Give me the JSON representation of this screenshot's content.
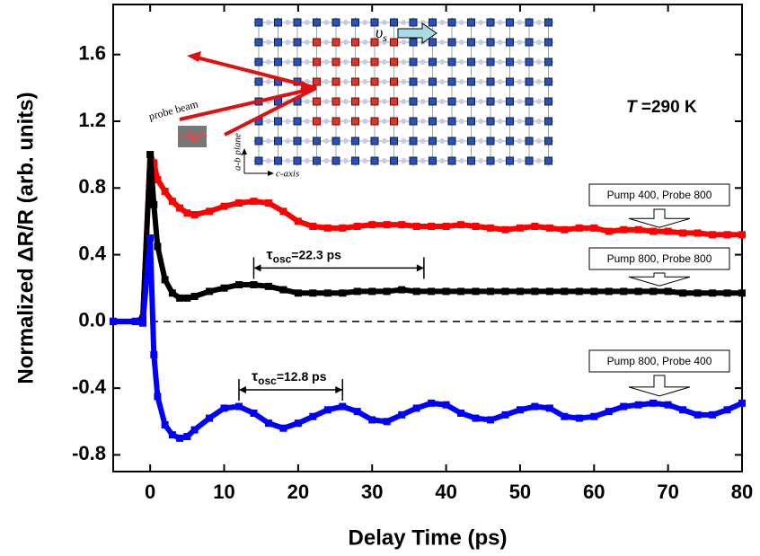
{
  "chart_data": {
    "type": "line",
    "x_label": "Delay Time (ps)",
    "y_label": "Normalized ΔR/R (arb. units)",
    "xlim": [
      -5,
      80
    ],
    "xticks": [
      0,
      10,
      20,
      30,
      40,
      50,
      60,
      70,
      80
    ],
    "ylim": [
      -0.9,
      1.9
    ],
    "yticks": [
      -0.8,
      -0.4,
      {
        "value": 0,
        "label": "0.0"
      },
      0.4,
      0.8,
      1.2,
      1.6
    ],
    "x": [
      -5,
      -2,
      -1,
      0,
      0.5,
      1,
      2,
      3,
      4,
      5,
      6,
      8,
      10,
      12,
      14,
      16,
      18,
      20,
      22,
      24,
      26,
      28,
      30,
      32,
      34,
      36,
      38,
      40,
      42,
      44,
      46,
      48,
      50,
      52,
      54,
      56,
      58,
      60,
      62,
      64,
      66,
      68,
      70,
      72,
      74,
      76,
      78,
      80
    ],
    "series": [
      {
        "name": "Pump 400, Probe 800",
        "color": "#ff0000",
        "values": [
          0,
          0,
          0.02,
          1.0,
          0.95,
          0.85,
          0.78,
          0.72,
          0.68,
          0.65,
          0.64,
          0.66,
          0.69,
          0.71,
          0.72,
          0.71,
          0.66,
          0.6,
          0.57,
          0.56,
          0.56,
          0.57,
          0.58,
          0.58,
          0.58,
          0.57,
          0.57,
          0.57,
          0.58,
          0.57,
          0.56,
          0.55,
          0.56,
          0.57,
          0.56,
          0.55,
          0.56,
          0.56,
          0.54,
          0.55,
          0.55,
          0.54,
          0.54,
          0.53,
          0.53,
          0.52,
          0.52,
          0.52
        ]
      },
      {
        "name": "Pump 800, Probe 800",
        "color": "#000000",
        "values": [
          0,
          0,
          0.01,
          1.0,
          0.7,
          0.45,
          0.25,
          0.17,
          0.14,
          0.14,
          0.15,
          0.18,
          0.2,
          0.22,
          0.22,
          0.21,
          0.19,
          0.17,
          0.17,
          0.17,
          0.17,
          0.18,
          0.18,
          0.18,
          0.19,
          0.18,
          0.18,
          0.18,
          0.18,
          0.18,
          0.18,
          0.18,
          0.18,
          0.18,
          0.18,
          0.18,
          0.18,
          0.18,
          0.18,
          0.18,
          0.18,
          0.18,
          0.18,
          0.17,
          0.17,
          0.17,
          0.17,
          0.17
        ]
      },
      {
        "name": "Pump 800, Probe 400",
        "color": "#0000ff",
        "values": [
          0,
          0,
          -0.01,
          0.5,
          -0.2,
          -0.45,
          -0.62,
          -0.68,
          -0.7,
          -0.69,
          -0.65,
          -0.58,
          -0.52,
          -0.51,
          -0.55,
          -0.61,
          -0.64,
          -0.61,
          -0.57,
          -0.53,
          -0.51,
          -0.54,
          -0.59,
          -0.6,
          -0.56,
          -0.52,
          -0.49,
          -0.5,
          -0.55,
          -0.58,
          -0.59,
          -0.56,
          -0.53,
          -0.51,
          -0.52,
          -0.57,
          -0.58,
          -0.57,
          -0.54,
          -0.51,
          -0.5,
          -0.49,
          -0.5,
          -0.53,
          -0.56,
          -0.56,
          -0.53,
          -0.49
        ]
      }
    ],
    "annotations": [
      {
        "symbol": "τ",
        "subscript": "osc",
        "text": "=22.3 ps",
        "span": [
          14,
          37
        ],
        "level": 0.32
      },
      {
        "symbol": "τ",
        "subscript": "osc",
        "text": "=12.8 ps",
        "span": [
          12,
          26
        ],
        "level": -0.41
      }
    ],
    "temperature": {
      "symbol": "T",
      "text": " =290 K"
    },
    "inset": {
      "beam": "probe beam",
      "velocity": "υ",
      "velocity_sub": "s",
      "plane": "a-b plane",
      "axis": "c-axis"
    }
  }
}
